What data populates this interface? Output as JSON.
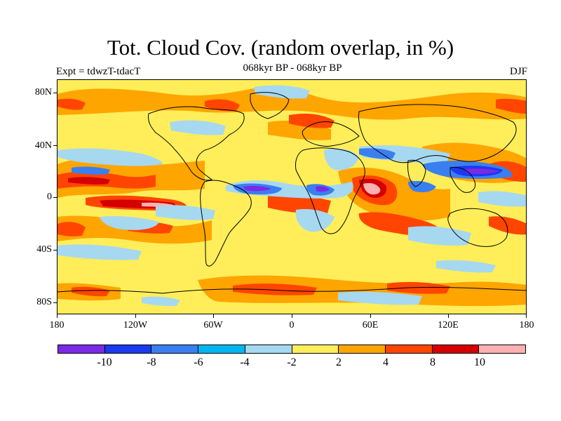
{
  "header": {
    "title": "Tot. Cloud Cov. (random overlap, in %)",
    "subtitle": "068kyr BP - 068kyr BP",
    "left_label": "Expt = tdwzT-tdacT",
    "right_label": "DJF"
  },
  "map": {
    "lat_labels": [
      "80N",
      "40N",
      "0",
      "40S",
      "80S"
    ],
    "lon_labels": [
      "180",
      "120W",
      "60W",
      "0",
      "60E",
      "120E",
      "180"
    ],
    "background_color": "#ffee5a",
    "coastline_color": "#000000"
  },
  "colorbar": {
    "colors": [
      "#7b2ae6",
      "#1a3aef",
      "#3a7ff0",
      "#00b6f0",
      "#a6d8f0",
      "#ffee5a",
      "#ffa500",
      "#ff4500",
      "#d40000",
      "#ffb0b0"
    ],
    "labels": [
      "-10",
      "-8",
      "-6",
      "-4",
      "-2",
      "2",
      "4",
      "8",
      "10"
    ]
  }
}
